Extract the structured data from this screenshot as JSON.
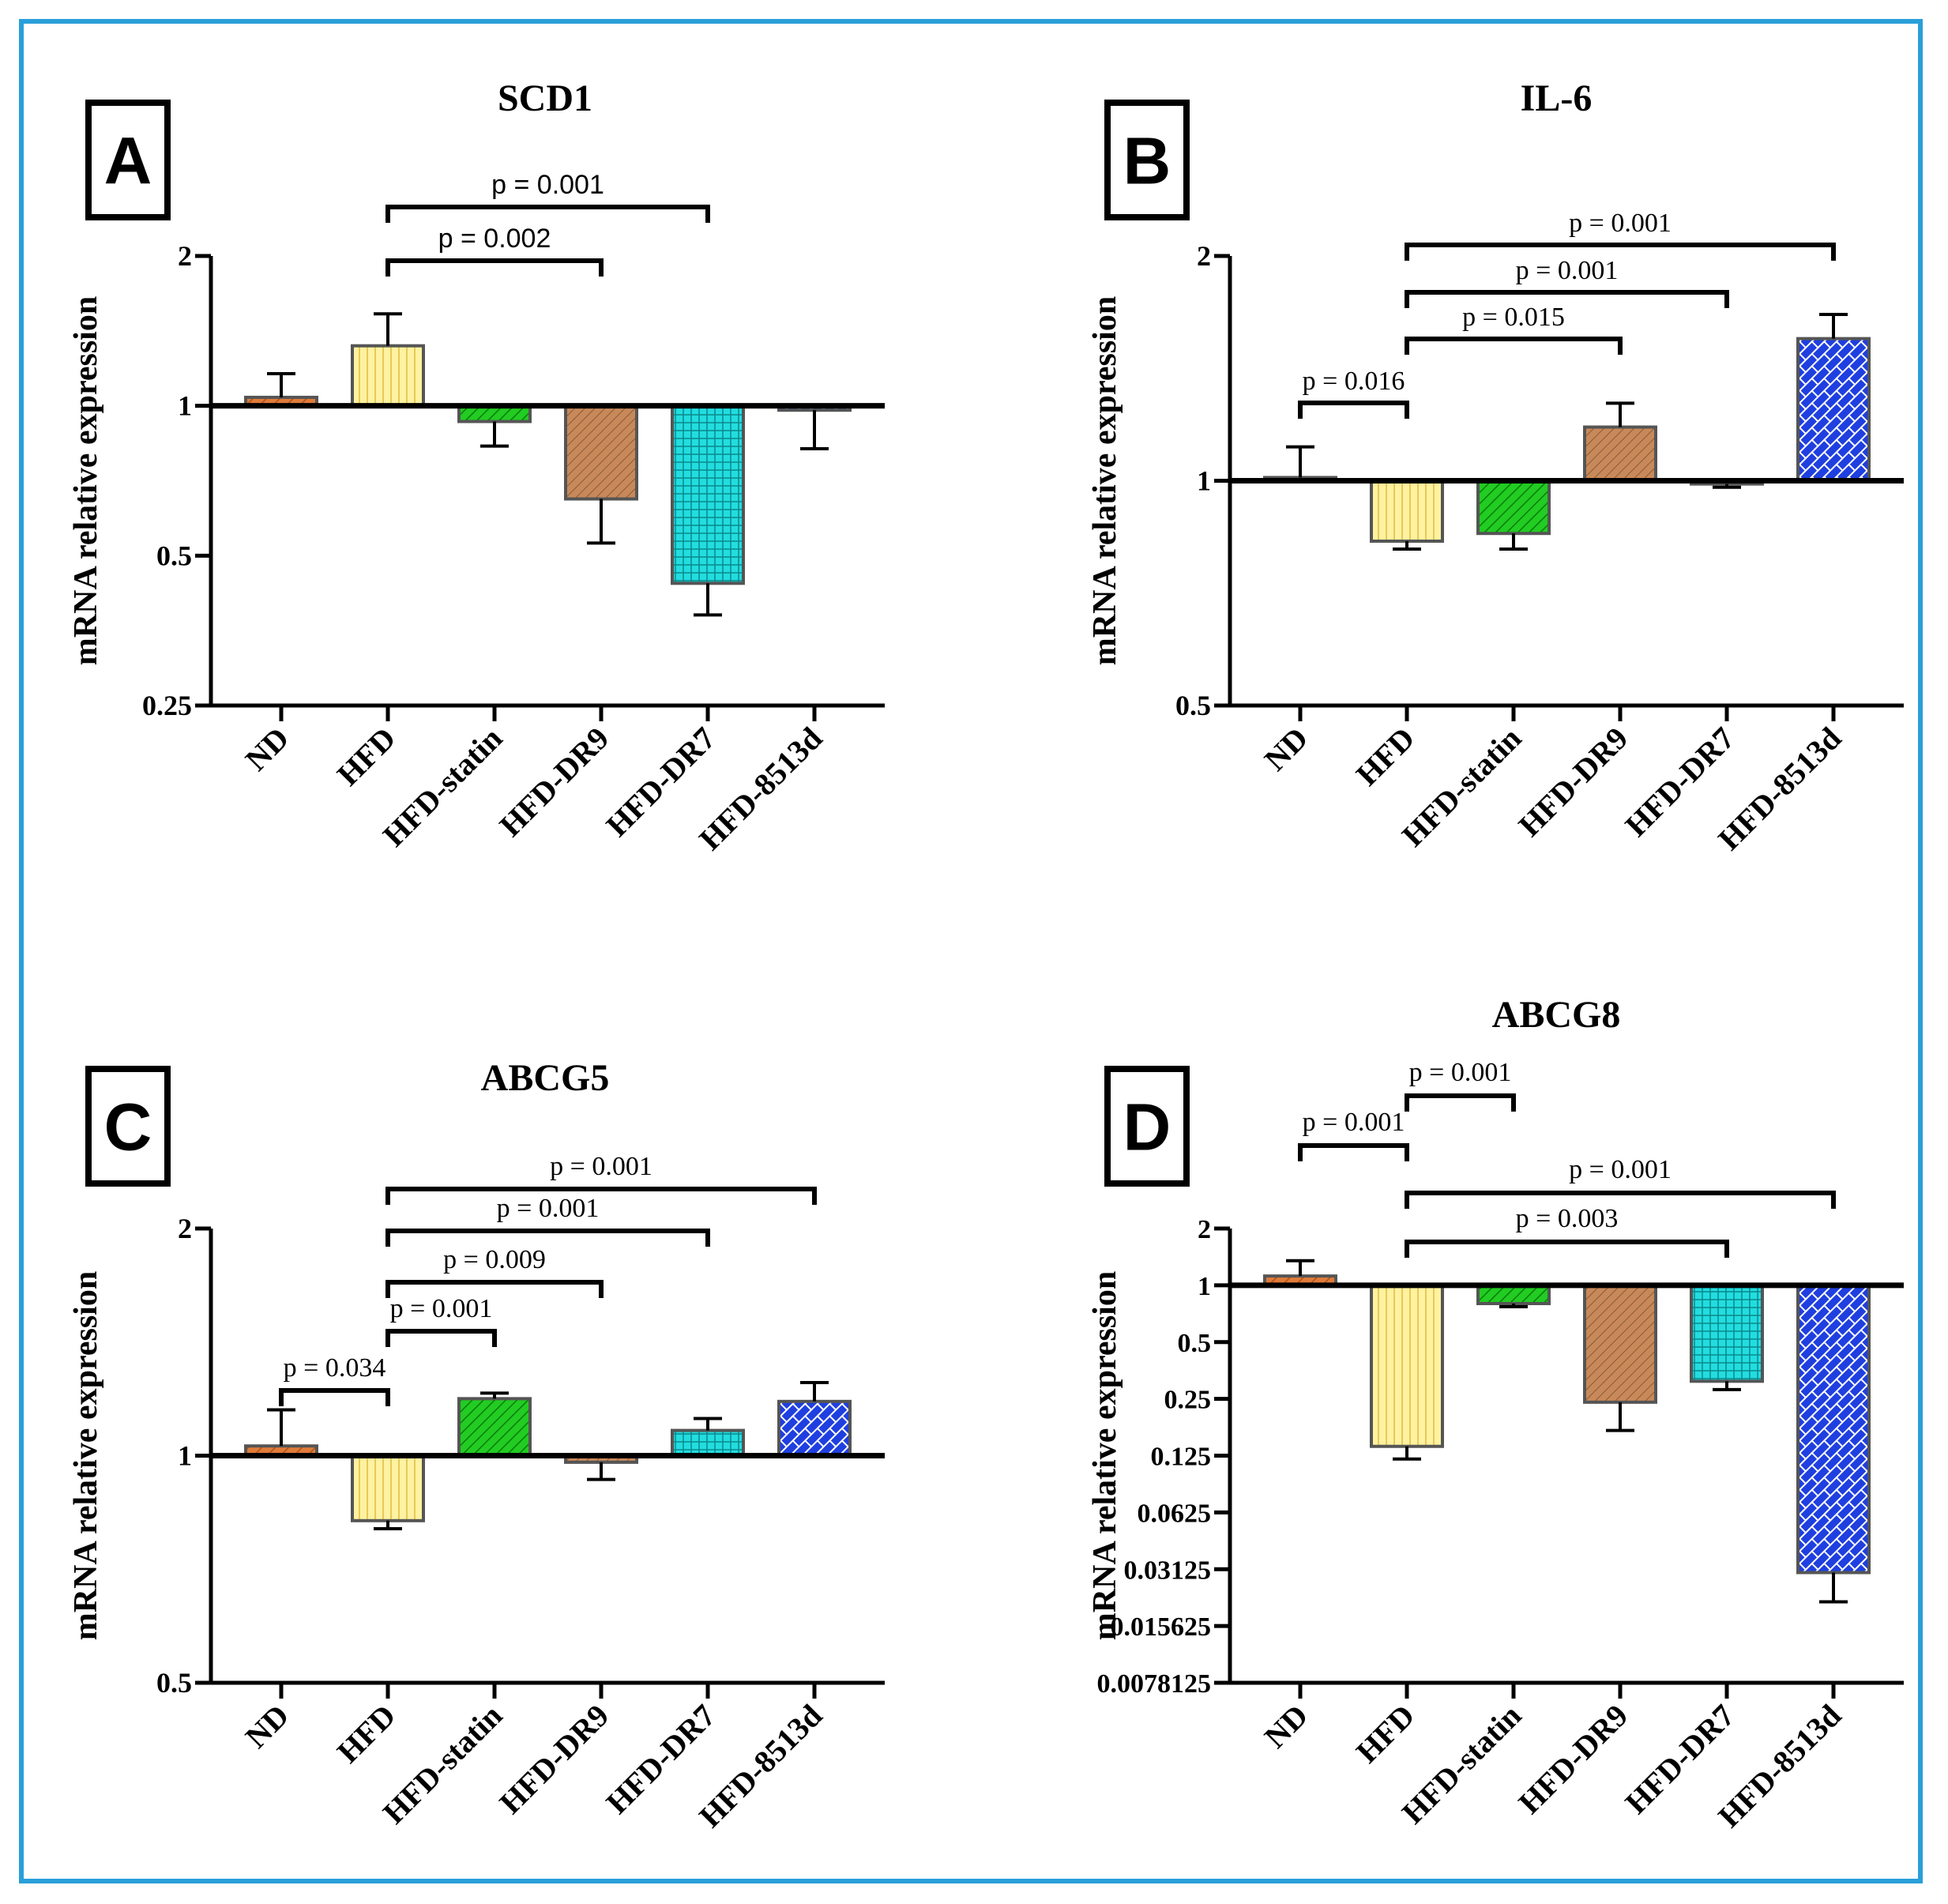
{
  "figure": {
    "border_color": "#2a9fd9"
  },
  "palette": {
    "ND": "#e07b39",
    "HFD": "#fff2a0",
    "HFD-statin": "#22cc22",
    "HFD-DR9": "#c8895a",
    "HFD-DR7": "#22dde0",
    "HFD-8513d": "#1f3fe0"
  },
  "chart_data": [
    {
      "panel": "A",
      "type": "bar",
      "title": "SCD1",
      "ylabel": "mRNA relative expression",
      "xlabel": "",
      "yscale": "log2",
      "baseline": 1,
      "ylim": [
        0.25,
        2
      ],
      "yticks": [
        "0.25",
        "0.5",
        "1",
        "2"
      ],
      "categories": [
        "ND",
        "HFD",
        "HFD-statin",
        "HFD-DR9",
        "HFD-DR7",
        "HFD-8513d"
      ],
      "values": [
        1.04,
        1.32,
        0.93,
        0.65,
        0.44,
        0.98
      ],
      "errors_upper": [
        1.16,
        1.53,
        0.83,
        0.53,
        0.38,
        0.82
      ],
      "significance": [
        {
          "from": 1,
          "to": 4,
          "label": "p = 0.001"
        },
        {
          "from": 1,
          "to": 3,
          "label": "p = 0.002"
        }
      ]
    },
    {
      "panel": "B",
      "type": "bar",
      "title": "IL-6",
      "ylabel": "mRNA relative expression",
      "xlabel": "",
      "yscale": "log2",
      "baseline": 1,
      "ylim": [
        0.5,
        2
      ],
      "yticks": [
        "0.5",
        "1",
        "2"
      ],
      "categories": [
        "ND",
        "HFD",
        "HFD-statin",
        "HFD-DR9",
        "HFD-DR7",
        "HFD-8513d"
      ],
      "values": [
        1.01,
        0.83,
        0.85,
        1.18,
        0.99,
        1.55
      ],
      "errors_upper": [
        1.11,
        0.81,
        0.81,
        1.27,
        0.98,
        1.67
      ],
      "significance": [
        {
          "from": 1,
          "to": 5,
          "label": "p = 0.001"
        },
        {
          "from": 1,
          "to": 4,
          "label": "p = 0.001"
        },
        {
          "from": 1,
          "to": 3,
          "label": "p = 0.015"
        },
        {
          "from": 0,
          "to": 1,
          "label": "p = 0.016"
        }
      ]
    },
    {
      "panel": "C",
      "type": "bar",
      "title": "ABCG5",
      "ylabel": "mRNA relative expression",
      "xlabel": "",
      "yscale": "log2",
      "baseline": 1,
      "ylim": [
        0.5,
        2
      ],
      "yticks": [
        "0.5",
        "1",
        "2"
      ],
      "categories": [
        "ND",
        "HFD",
        "HFD-statin",
        "HFD-DR9",
        "HFD-DR7",
        "HFD-8513d"
      ],
      "values": [
        1.03,
        0.82,
        1.19,
        0.98,
        1.08,
        1.18
      ],
      "errors_upper": [
        1.15,
        0.8,
        1.21,
        0.93,
        1.12,
        1.25
      ],
      "significance": [
        {
          "from": 1,
          "to": 5,
          "label": "p = 0.001"
        },
        {
          "from": 1,
          "to": 4,
          "label": "p = 0.001"
        },
        {
          "from": 1,
          "to": 3,
          "label": "p = 0.009"
        },
        {
          "from": 1,
          "to": 2,
          "label": "p = 0.001"
        },
        {
          "from": 0,
          "to": 1,
          "label": "p = 0.034"
        }
      ]
    },
    {
      "panel": "D",
      "type": "bar",
      "title": "ABCG8",
      "ylabel": "mRNA relative expression",
      "xlabel": "",
      "yscale": "log2",
      "baseline": 1,
      "ylim": [
        0.0078125,
        2
      ],
      "yticks": [
        "0.0078125",
        "0.015625",
        "0.03125",
        "0.0625",
        "0.125",
        "0.25",
        "0.5",
        "1",
        "2"
      ],
      "categories": [
        "ND",
        "HFD",
        "HFD-statin",
        "HFD-DR9",
        "HFD-DR7",
        "HFD-8513d"
      ],
      "values": [
        1.12,
        0.14,
        0.8,
        0.24,
        0.31,
        0.03
      ],
      "errors_upper": [
        1.35,
        0.12,
        0.77,
        0.17,
        0.28,
        0.021
      ],
      "significance": [
        {
          "from": 1,
          "to": 2,
          "label": "p = 0.001"
        },
        {
          "from": 0,
          "to": 1,
          "label": "p = 0.001"
        },
        {
          "from": 1,
          "to": 5,
          "label": "p = 0.001"
        },
        {
          "from": 1,
          "to": 4,
          "label": "p = 0.003"
        }
      ]
    }
  ]
}
